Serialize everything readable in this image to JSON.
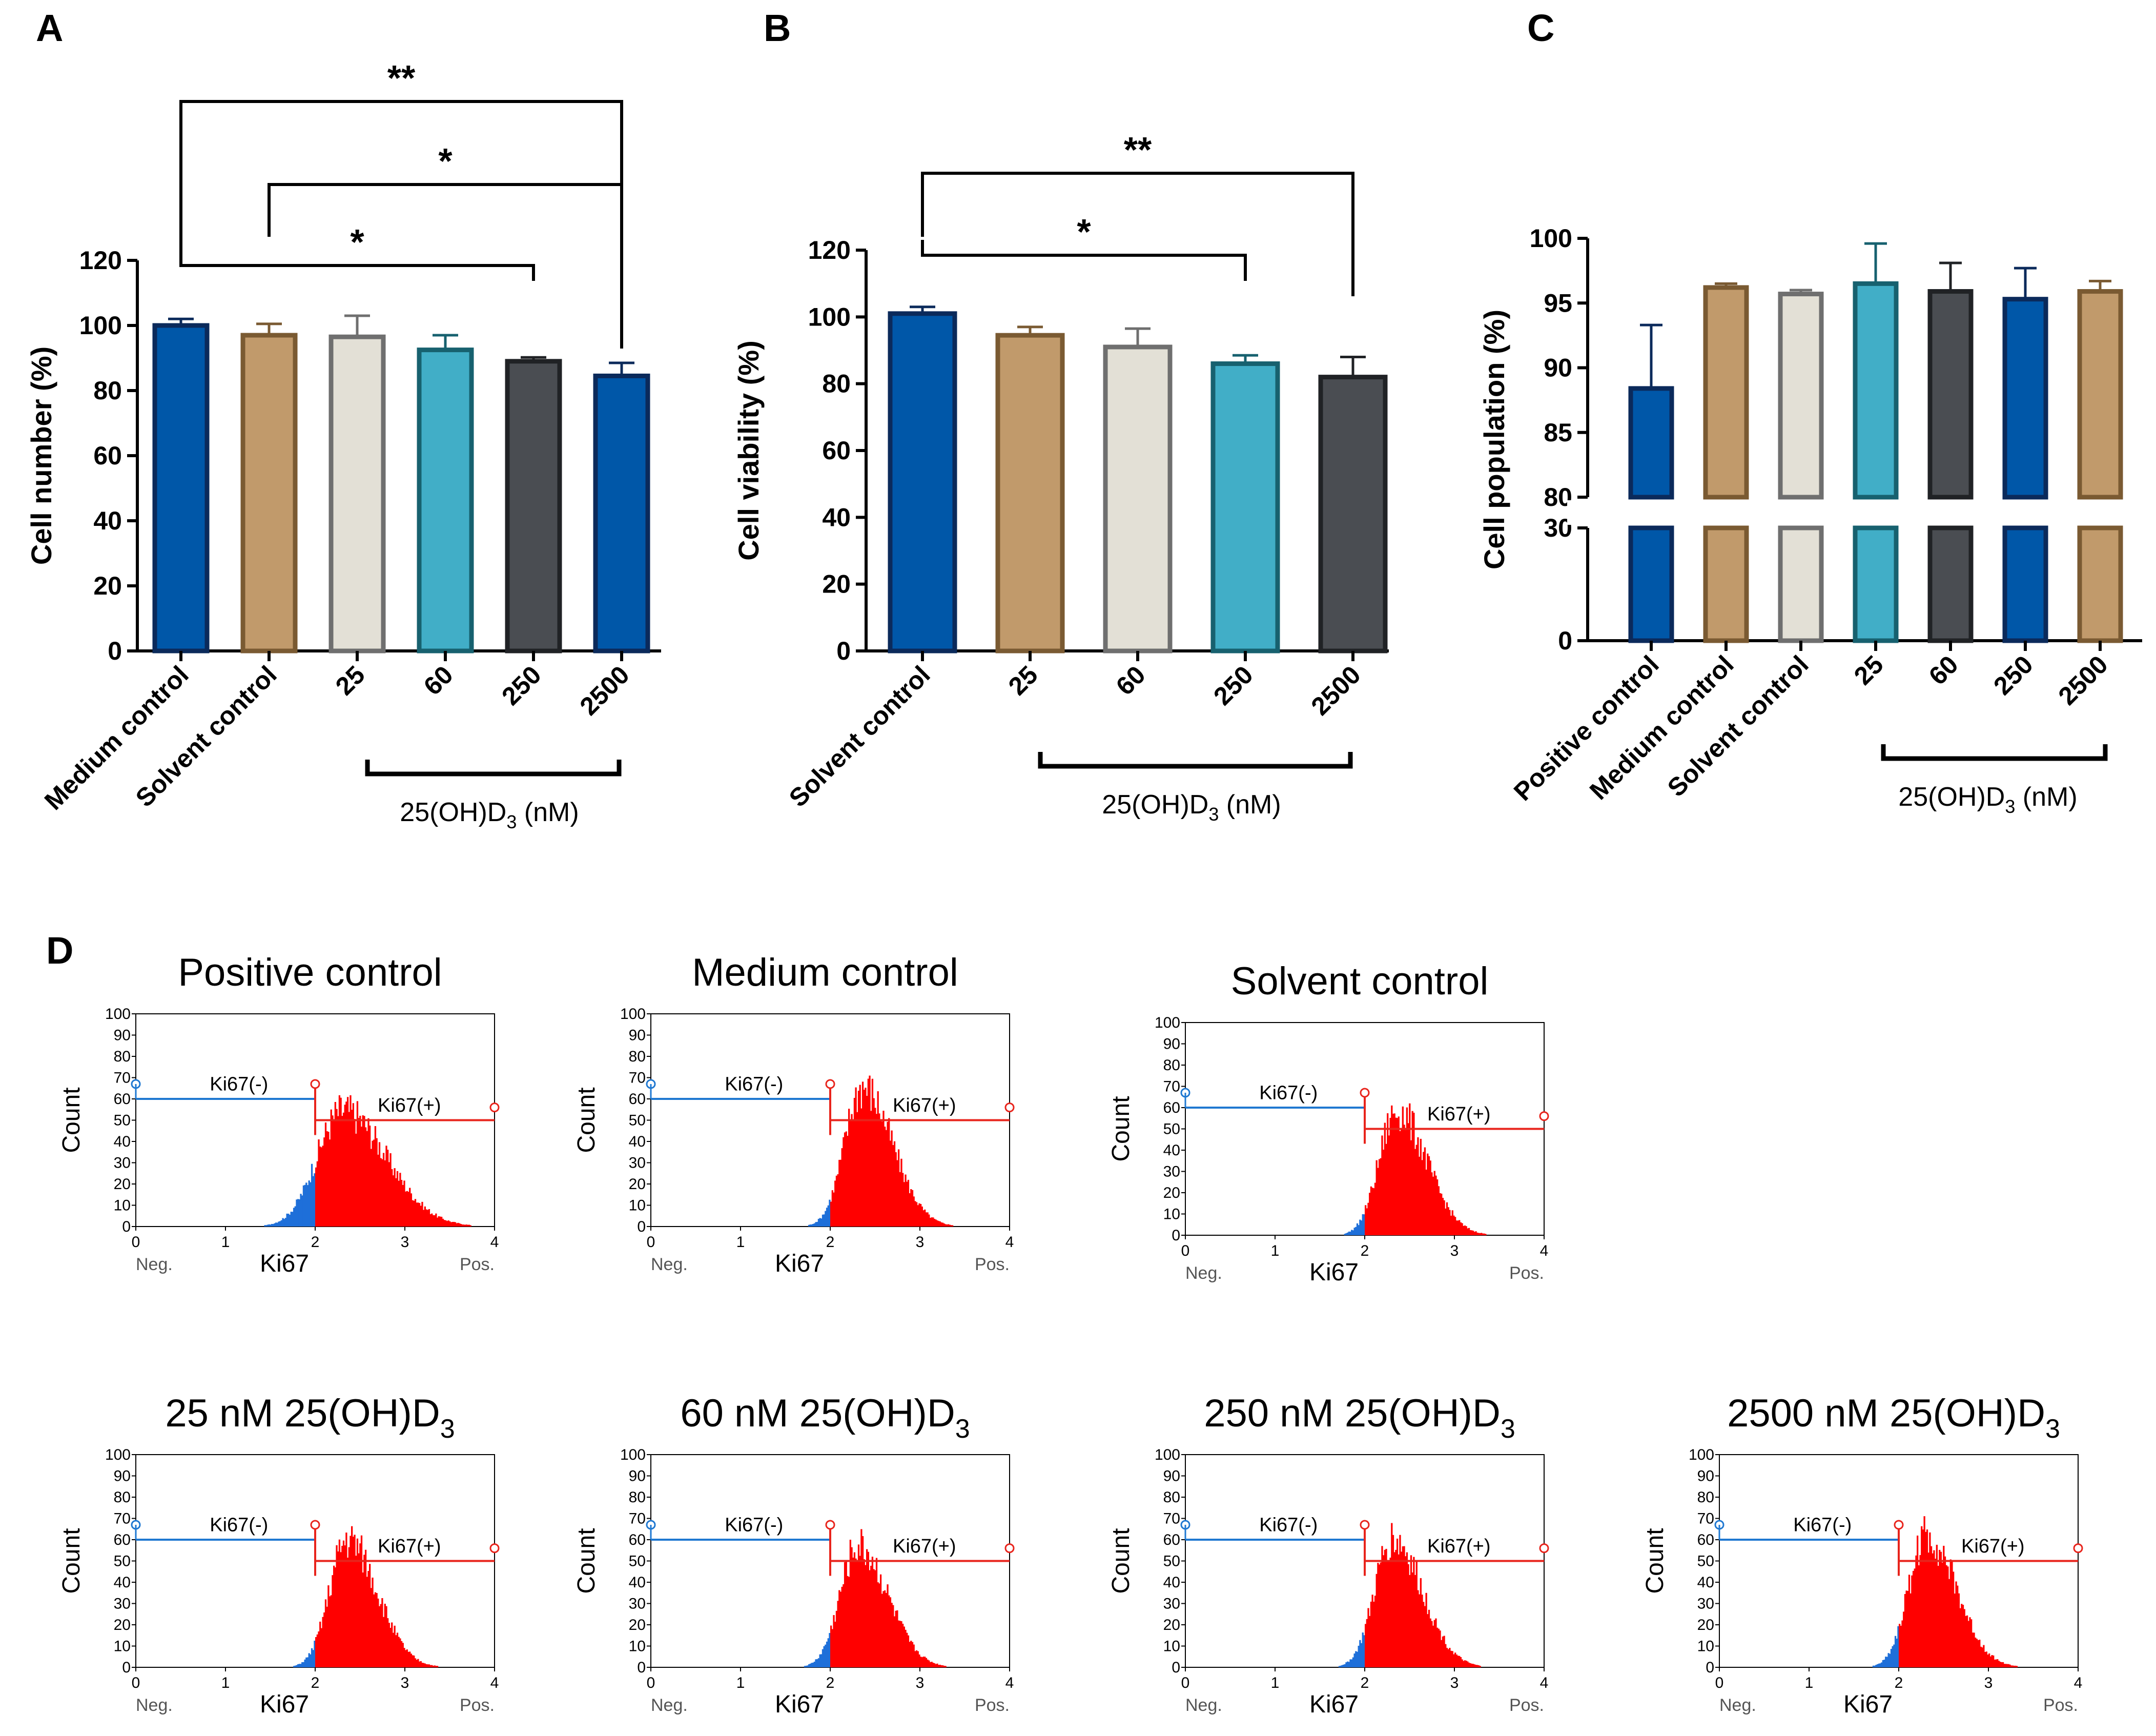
{
  "colors": {
    "blue": "#0057a8",
    "tan": "#c19a6b",
    "light": "#e3e0d6",
    "teal": "#41aec7",
    "gray": "#4a4d52",
    "axis": "#000000",
    "neg_gate": "#1f78d1",
    "pos_gate": "#e8241c",
    "hist_fill_pos": "#ff0000",
    "hist_fill_neg": "#1e6fd9"
  },
  "panels": {
    "A": "A",
    "B": "B",
    "C": "C",
    "D": "D"
  },
  "treatment_bracket_label": "25(OH)D",
  "treatment_bracket_sub": "3",
  "treatment_bracket_unit": " (nM)",
  "chart_data": [
    {
      "id": "A",
      "type": "bar",
      "ylabel": "Cell number (%)",
      "ylim": [
        0,
        120
      ],
      "yticks": [
        0,
        20,
        40,
        60,
        80,
        100,
        120
      ],
      "categories": [
        "Medium control",
        "Solvent control",
        "25",
        "60",
        "250",
        "2500"
      ],
      "values": [
        100,
        97,
        96.5,
        92.5,
        89,
        84.5
      ],
      "errors": [
        2,
        3.5,
        6.5,
        4.5,
        1.2,
        4
      ],
      "bar_colors": [
        "blue",
        "tan",
        "light",
        "teal",
        "gray",
        "blue"
      ],
      "significance": [
        {
          "from": "Medium control",
          "to": "2500",
          "label": "**"
        },
        {
          "from": "Solvent control",
          "to": "2500",
          "label": "*"
        },
        {
          "from": "Medium control",
          "to": "250",
          "label": "*"
        }
      ],
      "treatment_group": [
        "25",
        "60",
        "250",
        "2500"
      ]
    },
    {
      "id": "B",
      "type": "bar",
      "ylabel": "Cell viability (%)",
      "ylim": [
        0,
        120
      ],
      "yticks": [
        0,
        20,
        40,
        60,
        80,
        100,
        120
      ],
      "categories": [
        "Solvent control",
        "25",
        "60",
        "250",
        "2500"
      ],
      "values": [
        101,
        94.5,
        91,
        86,
        82
      ],
      "errors": [
        2,
        2.5,
        5.5,
        2.5,
        6
      ],
      "bar_colors": [
        "blue",
        "tan",
        "light",
        "teal",
        "gray"
      ],
      "significance": [
        {
          "from": "Solvent control",
          "to": "2500",
          "label": "**"
        },
        {
          "from": "Solvent control",
          "to": "250",
          "label": "*"
        }
      ],
      "treatment_group": [
        "25",
        "60",
        "250",
        "2500"
      ]
    },
    {
      "id": "C",
      "type": "bar",
      "ylabel": "Cell population (%)",
      "ylim": [
        0,
        100
      ],
      "axis_break": {
        "lower": [
          0,
          30
        ],
        "upper": [
          80,
          100
        ]
      },
      "yticks_upper": [
        80,
        85,
        90,
        95,
        100
      ],
      "yticks_lower": [
        0,
        30
      ],
      "categories": [
        "Positive control",
        "Medium control",
        "Solvent control",
        "25",
        "60",
        "250",
        "2500"
      ],
      "values": [
        88.4,
        96.2,
        95.7,
        96.5,
        95.9,
        95.3,
        95.9
      ],
      "errors": [
        4.9,
        0.3,
        0.3,
        3.1,
        2.2,
        2.4,
        0.8
      ],
      "bar_colors": [
        "blue",
        "tan",
        "light",
        "teal",
        "gray",
        "blue",
        "tan"
      ],
      "treatment_group": [
        "25",
        "60",
        "250",
        "2500"
      ]
    }
  ],
  "histograms": {
    "xlabel": "Ki67",
    "ylabel": "Count",
    "neg_label": "Neg.",
    "pos_label": "Pos.",
    "neg_gate": "Ki67(-)",
    "pos_gate": "Ki67(+)",
    "xticks": [
      "0",
      "1",
      "2",
      "3",
      "4"
    ],
    "yticks": [
      "0",
      "10",
      "20",
      "30",
      "40",
      "50",
      "60",
      "70",
      "80",
      "90",
      "100"
    ],
    "items": [
      {
        "title": "Positive control",
        "sub": "",
        "peak": 2.3,
        "height": 58,
        "width": 0.32
      },
      {
        "title": "Medium control",
        "sub": "",
        "peak": 2.35,
        "height": 70,
        "width": 0.22
      },
      {
        "title": "Solvent control",
        "sub": "",
        "peak": 2.35,
        "height": 62,
        "width": 0.22
      },
      {
        "title": "25 nM 25(OH)D",
        "sub": "3",
        "peak": 2.35,
        "height": 64,
        "width": 0.22
      },
      {
        "title": "60 nM 25(OH)D",
        "sub": "3",
        "peak": 2.3,
        "height": 60,
        "width": 0.22
      },
      {
        "title": "250 nM 25(OH)D",
        "sub": "3",
        "peak": 2.3,
        "height": 64,
        "width": 0.22
      },
      {
        "title": "2500 nM 25(OH)D",
        "sub": "3",
        "peak": 2.3,
        "height": 66,
        "width": 0.22
      }
    ]
  }
}
